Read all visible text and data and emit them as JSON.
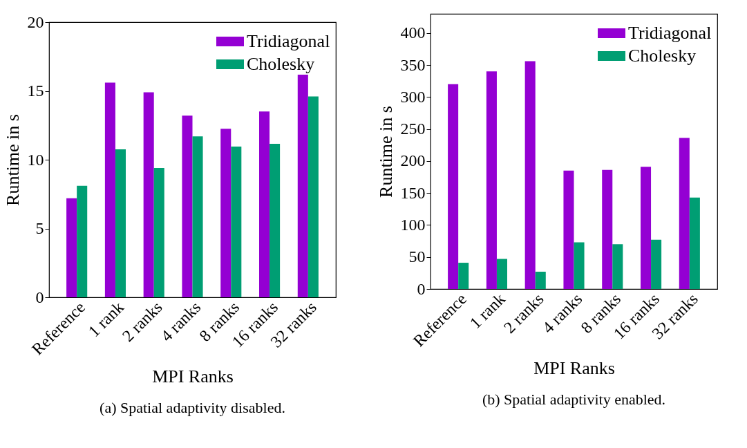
{
  "chart_data": [
    {
      "type": "bar",
      "xlabel": "MPI Ranks",
      "ylabel": "Runtime in s",
      "categories": [
        "Reference",
        "1 rank",
        "2 ranks",
        "4 ranks",
        "8 ranks",
        "16 ranks",
        "32 ranks"
      ],
      "ylim": [
        0,
        20
      ],
      "yticks": [
        0,
        5,
        10,
        15,
        20
      ],
      "legend": "top right",
      "annotations": [
        "(a) Spatial adaptivity disabled."
      ],
      "series": [
        {
          "name": "Tridiagonal",
          "color": "#9400d3",
          "values": [
            7.2,
            15.6,
            14.9,
            13.2,
            12.25,
            13.5,
            16.3
          ]
        },
        {
          "name": "Cholesky",
          "color": "#009e73",
          "values": [
            8.1,
            10.75,
            9.4,
            11.7,
            10.95,
            11.15,
            14.6
          ]
        }
      ]
    },
    {
      "type": "bar",
      "xlabel": "MPI Ranks",
      "ylabel": "Runtime in s",
      "categories": [
        "Reference",
        "1 rank",
        "2 ranks",
        "4 ranks",
        "8 ranks",
        "16 ranks",
        "32 ranks"
      ],
      "ylim": [
        0,
        430
      ],
      "yticks": [
        0,
        50,
        100,
        150,
        200,
        250,
        300,
        350,
        400
      ],
      "legend": "top right",
      "annotations": [
        "(b) Spatial adaptivity enabled."
      ],
      "series": [
        {
          "name": "Tridiagonal",
          "color": "#9400d3",
          "values": [
            320,
            340,
            356,
            185,
            186,
            191,
            236
          ]
        },
        {
          "name": "Cholesky",
          "color": "#009e73",
          "values": [
            41,
            47,
            27,
            73,
            70,
            77,
            143
          ]
        }
      ]
    }
  ]
}
